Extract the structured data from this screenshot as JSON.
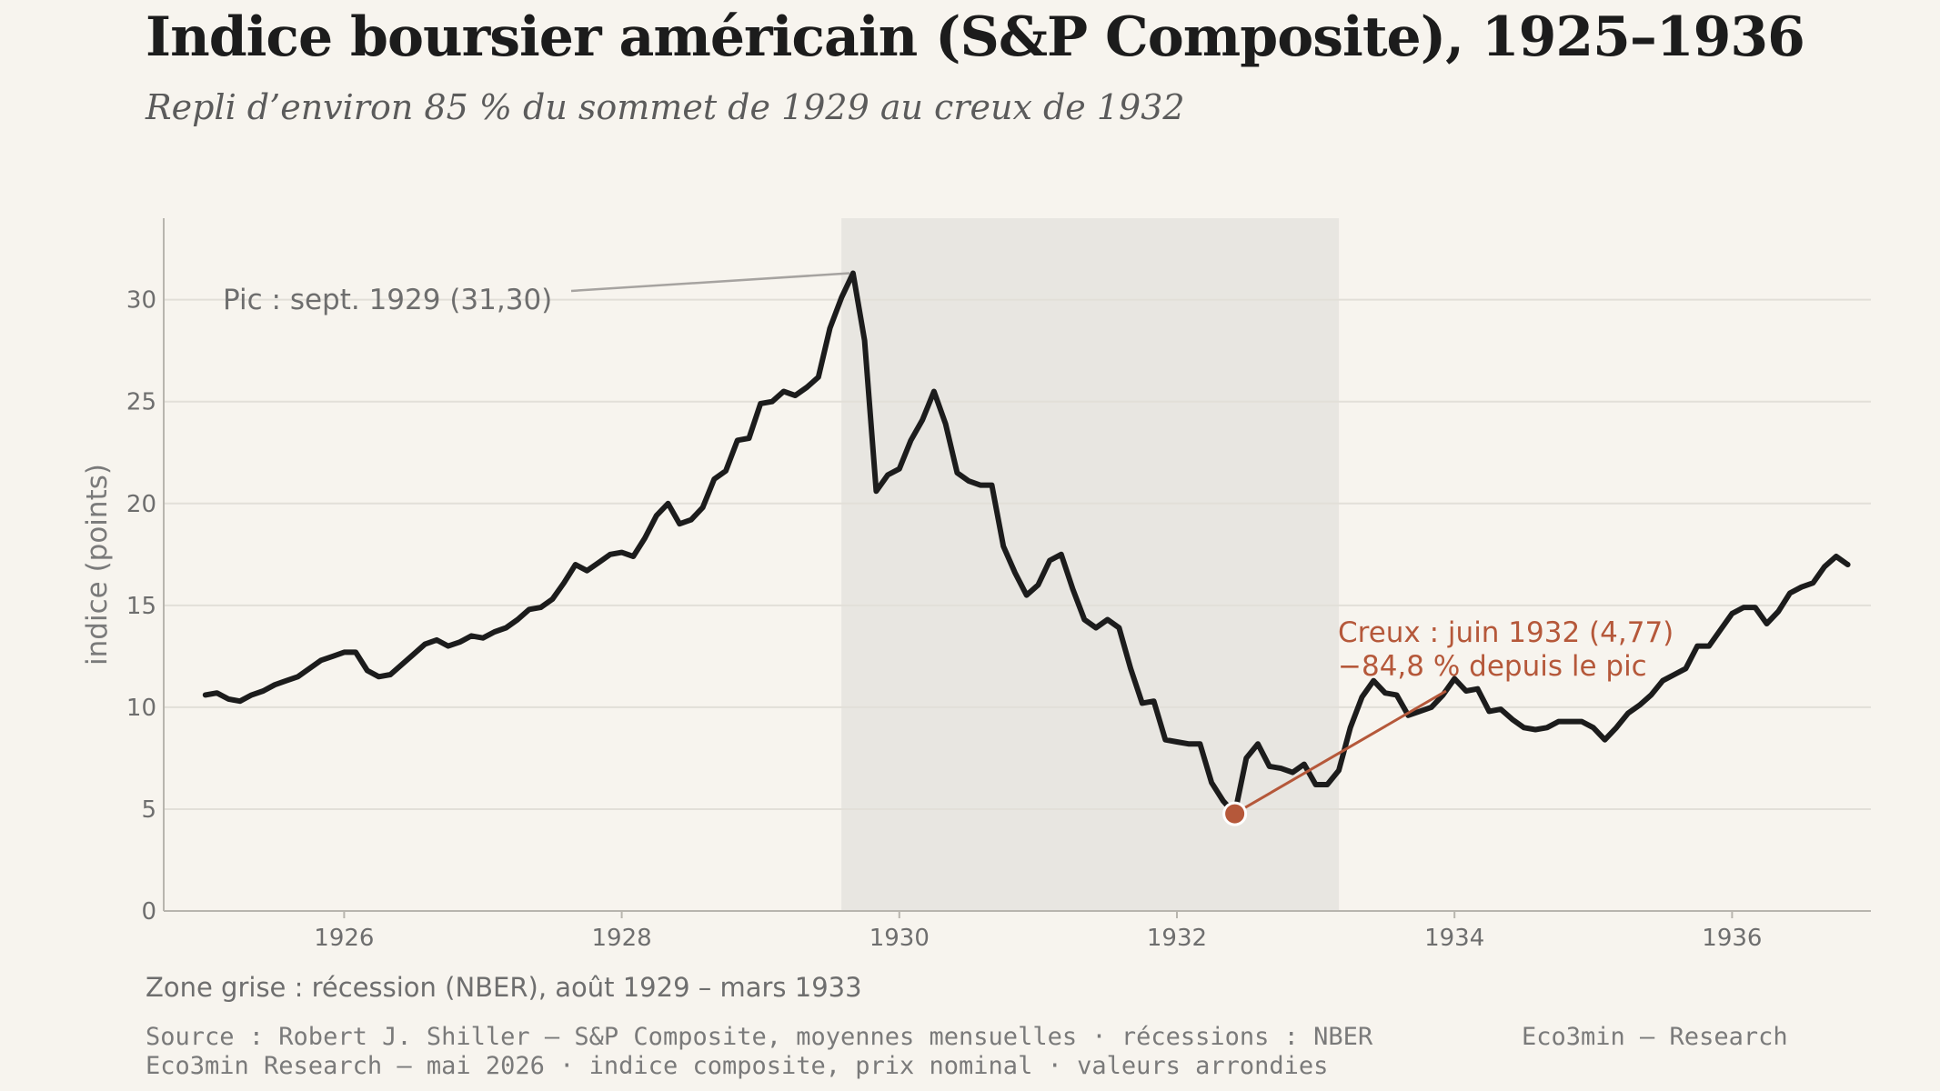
{
  "chart_data": {
    "type": "line",
    "title": "Indice boursier américain (S&P Composite), 1925–1936",
    "subtitle": "Repli d’environ 85 % du sommet de 1929 au creux de 1932",
    "ylabel": "indice (points)",
    "xlabel": "",
    "x_range": [
      1924.7,
      1937.0
    ],
    "ylim": [
      0,
      34
    ],
    "x_ticks": [
      1926,
      1928,
      1930,
      1932,
      1934,
      1936
    ],
    "x_tick_labels": [
      "1926",
      "1928",
      "1930",
      "1932",
      "1934",
      "1936"
    ],
    "y_ticks": [
      0,
      5,
      10,
      15,
      20,
      25,
      30
    ],
    "y_tick_labels": [
      "0",
      "5",
      "10",
      "15",
      "20",
      "25",
      "30"
    ],
    "grid": "horizontal",
    "legend": "none",
    "shaded_region": {
      "x_start": 1929.583,
      "x_end": 1933.167
    },
    "series": [
      {
        "x_start": 1925.0,
        "step": 0.0833333,
        "values": [
          10.6,
          10.7,
          10.4,
          10.3,
          10.6,
          10.8,
          11.1,
          11.3,
          11.5,
          11.9,
          12.3,
          12.5,
          12.7,
          12.7,
          11.8,
          11.5,
          11.6,
          12.1,
          12.6,
          13.1,
          13.3,
          13.0,
          13.2,
          13.5,
          13.4,
          13.7,
          13.9,
          14.3,
          14.8,
          14.9,
          15.3,
          16.1,
          17.0,
          16.7,
          17.1,
          17.5,
          17.6,
          17.4,
          18.3,
          19.4,
          20.0,
          19.0,
          19.2,
          19.8,
          21.2,
          21.6,
          23.1,
          23.2,
          24.9,
          25.0,
          25.5,
          25.3,
          25.7,
          26.2,
          28.6,
          30.1,
          31.3,
          28.0,
          20.6,
          21.4,
          21.7,
          23.1,
          24.1,
          25.5,
          23.9,
          21.5,
          21.1,
          20.9,
          20.9,
          17.9,
          16.6,
          15.5,
          16.0,
          17.2,
          17.5,
          15.8,
          14.3,
          13.9,
          14.3,
          13.9,
          11.9,
          10.2,
          10.3,
          8.4,
          8.3,
          8.2,
          8.2,
          6.3,
          5.4,
          4.77,
          7.5,
          8.2,
          7.1,
          7.0,
          6.8,
          7.2,
          6.2,
          6.2,
          6.9,
          9.0,
          10.5,
          11.3,
          10.7,
          10.6,
          9.6,
          9.8,
          10.0,
          10.6,
          11.4,
          10.8,
          10.9,
          9.8,
          9.9,
          9.4,
          9.0,
          8.9,
          9.0,
          9.3,
          9.3,
          9.3,
          9.0,
          8.4,
          9.0,
          9.7,
          10.1,
          10.6,
          11.3,
          11.6,
          11.9,
          13.0,
          13.0,
          13.8,
          14.6,
          14.9,
          14.9,
          14.1,
          14.7,
          15.6,
          15.9,
          16.1,
          16.9,
          17.4,
          17.0
        ]
      }
    ],
    "annotations": [
      {
        "text": "Pic : sept. 1929 (31,30)",
        "x": 1929.667,
        "y": 31.3
      },
      {
        "text": "Creux : juin 1932 (4,77)",
        "text2": "−84,8 % depuis le pic",
        "x": 1932.417,
        "y": 4.77
      }
    ]
  },
  "footer": {
    "note": "Zone grise : récession (NBER), août 1929 – mars 1933",
    "source": "Source : Robert J. Shiller — S&P Composite, moyennes mensuelles · récessions : NBER",
    "brand": "Eco3min — Research",
    "credit": "Eco3min Research — mai 2026 · indice composite, prix nominal · valeurs arrondies"
  },
  "colors": {
    "background": "#f7f4ee",
    "line": "#1c1c1c",
    "shading": "#e8e6e1",
    "grid": "#e2dfd8",
    "accent": "#b5583a",
    "peak_label": "#6e6e6e"
  }
}
